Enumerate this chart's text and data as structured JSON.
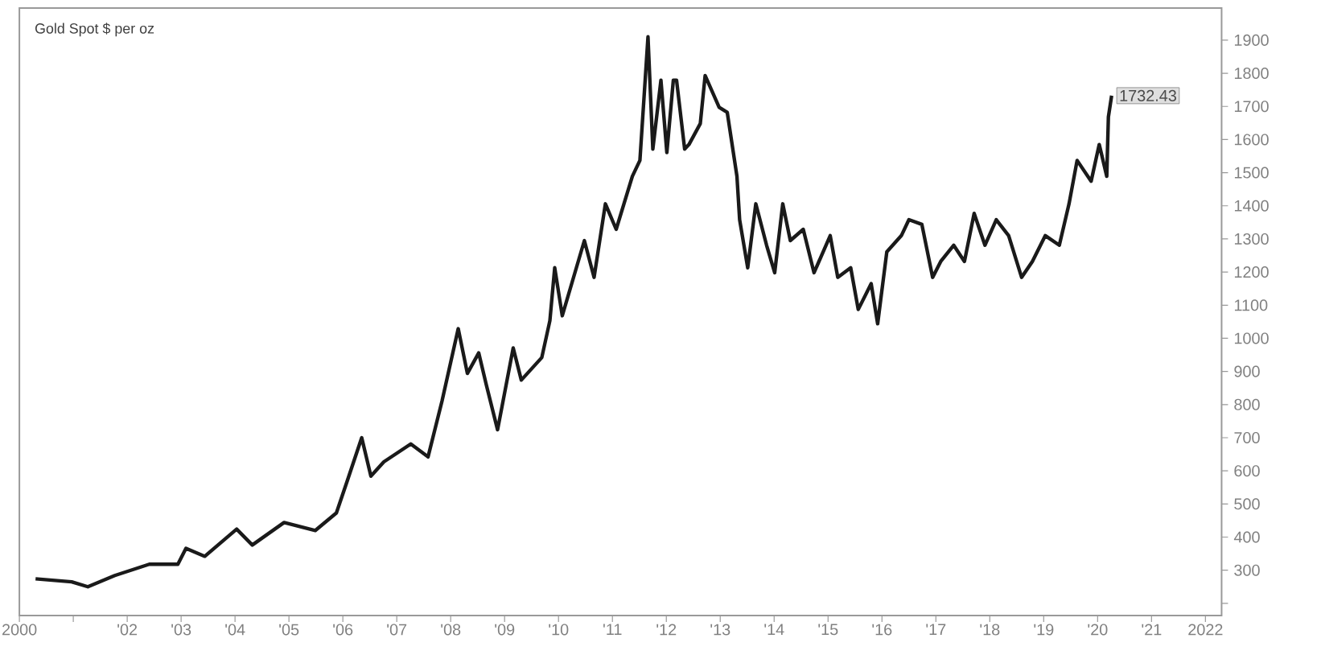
{
  "chart_data": {
    "type": "line",
    "title": "Gold Spot $ per oz",
    "xlim": [
      2000,
      2022.3
    ],
    "ylim": [
      163,
      1997
    ],
    "xticks": [
      {
        "value": 2000,
        "label": "2000"
      },
      {
        "value": 2001,
        "label": null
      },
      {
        "value": 2002,
        "label": "'02"
      },
      {
        "value": 2003,
        "label": "'03"
      },
      {
        "value": 2004,
        "label": "'04"
      },
      {
        "value": 2005,
        "label": "'05"
      },
      {
        "value": 2006,
        "label": "'06"
      },
      {
        "value": 2007,
        "label": "'07"
      },
      {
        "value": 2008,
        "label": "'08"
      },
      {
        "value": 2009,
        "label": "'09"
      },
      {
        "value": 2010,
        "label": "'10"
      },
      {
        "value": 2011,
        "label": "'11"
      },
      {
        "value": 2012,
        "label": "'12"
      },
      {
        "value": 2013,
        "label": "'13"
      },
      {
        "value": 2014,
        "label": "'14"
      },
      {
        "value": 2015,
        "label": "'15"
      },
      {
        "value": 2016,
        "label": "'16"
      },
      {
        "value": 2017,
        "label": "'17"
      },
      {
        "value": 2018,
        "label": "'18"
      },
      {
        "value": 2019,
        "label": "'19"
      },
      {
        "value": 2020,
        "label": "'20"
      },
      {
        "value": 2021,
        "label": "'21"
      },
      {
        "value": 2022,
        "label": "2022"
      }
    ],
    "yticks": [
      {
        "value": 200,
        "label": null
      },
      300,
      400,
      500,
      600,
      700,
      800,
      900,
      1000,
      1100,
      1200,
      1300,
      1400,
      1500,
      1600,
      1700,
      1800,
      1900
    ],
    "series": [
      {
        "color": "#1a1a1a",
        "x": [
          2000.3,
          2000.97,
          2001.27,
          2001.77,
          2002.41,
          2002.94,
          2003.09,
          2003.44,
          2004.03,
          2004.32,
          2004.91,
          2005.49,
          2005.88,
          2006.08,
          2006.35,
          2006.52,
          2006.76,
          2007.26,
          2007.58,
          2007.84,
          2008.14,
          2008.31,
          2008.52,
          2008.66,
          2008.87,
          2009.16,
          2009.31,
          2009.69,
          2009.84,
          2009.93,
          2010.07,
          2010.48,
          2010.66,
          2010.87,
          2011.07,
          2011.37,
          2011.51,
          2011.66,
          2011.75,
          2011.9,
          2012.01,
          2012.13,
          2012.19,
          2012.34,
          2012.42,
          2012.63,
          2012.72,
          2012.98,
          2013.13,
          2013.31,
          2013.36,
          2013.51,
          2013.66,
          2013.86,
          2014.01,
          2014.16,
          2014.3,
          2014.54,
          2014.74,
          2015.04,
          2015.18,
          2015.42,
          2015.56,
          2015.8,
          2015.92,
          2016.09,
          2016.36,
          2016.5,
          2016.74,
          2016.94,
          2017.09,
          2017.33,
          2017.53,
          2017.71,
          2017.91,
          2018.12,
          2018.35,
          2018.59,
          2018.79,
          2019.03,
          2019.29,
          2019.47,
          2019.62,
          2019.88,
          2020.03,
          2020.17,
          2020.2,
          2020.26
        ],
        "values": [
          274,
          265,
          250,
          284,
          318,
          318,
          366,
          342,
          424,
          376,
          444,
          420,
          473,
          569,
          700,
          584,
          627,
          681,
          642,
          811,
          1029,
          894,
          956,
          860,
          724,
          971,
          874,
          942,
          1053,
          1213,
          1068,
          1295,
          1184,
          1406,
          1329,
          1489,
          1537,
          1910,
          1571,
          1779,
          1561,
          1779,
          1779,
          1571,
          1585,
          1648,
          1793,
          1697,
          1682,
          1489,
          1358,
          1213,
          1406,
          1281,
          1198,
          1406,
          1295,
          1329,
          1198,
          1310,
          1184,
          1213,
          1087,
          1165,
          1044,
          1261,
          1310,
          1358,
          1344,
          1184,
          1232,
          1281,
          1232,
          1377,
          1281,
          1358,
          1310,
          1184,
          1232,
          1310,
          1281,
          1406,
          1537,
          1474,
          1585,
          1489,
          1668,
          1732.43
        ],
        "value_labels": [
          null,
          null,
          null,
          null,
          null,
          null,
          null,
          null,
          null,
          null,
          null,
          null,
          null,
          null,
          null,
          null,
          null,
          null,
          null,
          null,
          null,
          null,
          null,
          null,
          null,
          null,
          null,
          null,
          null,
          null,
          null,
          null,
          null,
          null,
          null,
          null,
          null,
          null,
          null,
          null,
          null,
          null,
          null,
          null,
          null,
          null,
          null,
          null,
          null,
          null,
          null,
          null,
          null,
          null,
          null,
          null,
          null,
          null,
          null,
          null,
          null,
          null,
          null,
          null,
          null,
          null,
          null,
          null,
          null,
          null,
          null,
          null,
          null,
          null,
          null,
          null,
          null,
          null,
          null,
          null,
          null,
          null,
          null,
          null,
          null,
          null,
          null,
          "1732.43"
        ]
      }
    ]
  }
}
